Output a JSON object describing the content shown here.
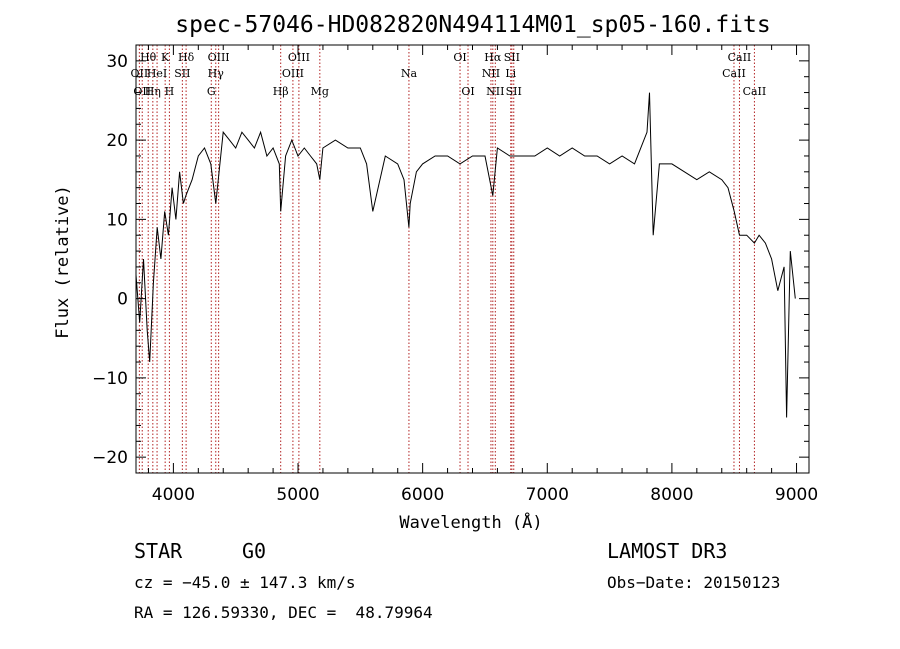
{
  "chart_data": {
    "type": "line",
    "title": "spec-57046-HD082820N494114M01_sp05-160.fits",
    "xlabel": "Wavelength (Å)",
    "ylabel": "Flux (relative)",
    "xlim": [
      3700,
      9100
    ],
    "ylim": [
      -22,
      32
    ],
    "xticks": [
      4000,
      5000,
      6000,
      7000,
      8000,
      9000
    ],
    "yticks": [
      -20,
      -10,
      0,
      10,
      20,
      30
    ],
    "grid": false,
    "series": [
      {
        "x": [
          3700,
          3730,
          3760,
          3790,
          3810,
          3840,
          3870,
          3900,
          3930,
          3960,
          3990,
          4020,
          4050,
          4080,
          4100,
          4150,
          4200,
          4250,
          4300,
          4340,
          4400,
          4450,
          4500,
          4550,
          4600,
          4650,
          4700,
          4750,
          4800,
          4850,
          4861,
          4900,
          4950,
          5000,
          5050,
          5100,
          5150,
          5175,
          5200,
          5300,
          5400,
          5500,
          5550,
          5600,
          5700,
          5800,
          5850,
          5890,
          5900,
          5950,
          6000,
          6100,
          6200,
          6300,
          6400,
          6500,
          6563,
          6600,
          6700,
          6800,
          6900,
          7000,
          7100,
          7200,
          7300,
          7400,
          7500,
          7600,
          7700,
          7800,
          7820,
          7850,
          7900,
          8000,
          8100,
          8200,
          8300,
          8400,
          8450,
          8500,
          8542,
          8600,
          8662,
          8700,
          8750,
          8800,
          8850,
          8900,
          8920,
          8950,
          8990
        ],
        "values": [
          3,
          -3,
          5,
          -4,
          -8,
          2,
          9,
          5,
          11,
          8,
          14,
          10,
          16,
          12,
          13,
          15,
          18,
          19,
          17,
          12,
          21,
          20,
          19,
          21,
          20,
          19,
          21,
          18,
          19,
          17,
          11,
          18,
          20,
          18,
          19,
          18,
          17,
          15,
          19,
          20,
          19,
          19,
          17,
          11,
          18,
          17,
          15,
          9,
          12,
          16,
          17,
          18,
          18,
          17,
          18,
          18,
          13,
          19,
          18,
          18,
          18,
          19,
          18,
          19,
          18,
          18,
          17,
          18,
          17,
          21,
          26,
          8,
          17,
          17,
          16,
          15,
          16,
          15,
          14,
          11,
          8,
          8,
          7,
          8,
          7,
          5,
          1,
          4,
          -15,
          6,
          0
        ]
      }
    ],
    "line_markers": [
      {
        "wl": 3727,
        "label": "OII",
        "row": 2
      },
      {
        "wl": 3750,
        "label": "OII",
        "row": 3
      },
      {
        "wl": 3798,
        "label": "Hθ",
        "row": 1
      },
      {
        "wl": 3835,
        "label": "Hη",
        "row": 3
      },
      {
        "wl": 3869,
        "label": "HeI",
        "row": 2
      },
      {
        "wl": 3934,
        "label": "K",
        "row": 1
      },
      {
        "wl": 3968,
        "label": "H",
        "row": 3
      },
      {
        "wl": 4072,
        "label": "SII",
        "row": 2
      },
      {
        "wl": 4102,
        "label": "Hδ",
        "row": 1
      },
      {
        "wl": 4304,
        "label": "G",
        "row": 3
      },
      {
        "wl": 4340,
        "label": "Hγ",
        "row": 2
      },
      {
        "wl": 4363,
        "label": "OIII",
        "row": 1
      },
      {
        "wl": 4861,
        "label": "Hβ",
        "row": 3
      },
      {
        "wl": 4959,
        "label": "OIII",
        "row": 2
      },
      {
        "wl": 5007,
        "label": "OIII",
        "row": 1
      },
      {
        "wl": 5175,
        "label": "Mg",
        "row": 3
      },
      {
        "wl": 5890,
        "label": "Na",
        "row": 2
      },
      {
        "wl": 6300,
        "label": "OI",
        "row": 1
      },
      {
        "wl": 6364,
        "label": "OI",
        "row": 3
      },
      {
        "wl": 6548,
        "label": "NII",
        "row": 2
      },
      {
        "wl": 6563,
        "label": "Hα",
        "row": 1
      },
      {
        "wl": 6583,
        "label": "NII",
        "row": 3
      },
      {
        "wl": 6707,
        "label": "Li",
        "row": 2
      },
      {
        "wl": 6716,
        "label": "SII",
        "row": 1
      },
      {
        "wl": 6731,
        "label": "SII",
        "row": 3
      },
      {
        "wl": 8498,
        "label": "CaII",
        "row": 2
      },
      {
        "wl": 8542,
        "label": "CaII",
        "row": 1
      },
      {
        "wl": 8662,
        "label": "CaII",
        "row": 3
      }
    ]
  },
  "info": {
    "object_class": "STAR",
    "subclass": "G0",
    "survey": "LAMOST DR3",
    "cz": "cz = −45.0 ± 147.3 km/s",
    "obs_date": "Obs−Date: 20150123",
    "coords": "RA = 126.59330, DEC =  48.79964"
  }
}
